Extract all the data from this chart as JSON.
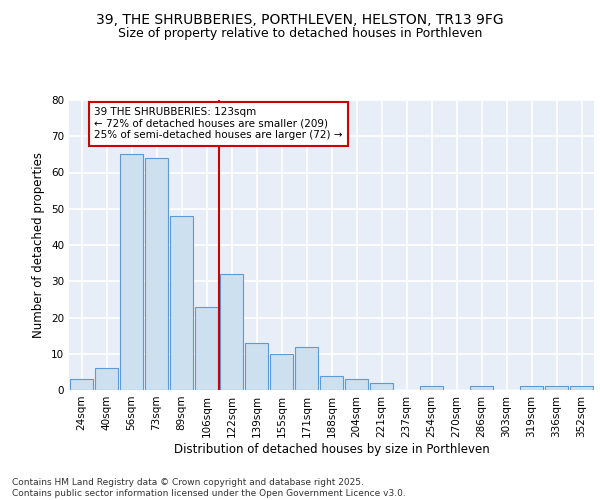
{
  "title": "39, THE SHRUBBERIES, PORTHLEVEN, HELSTON, TR13 9FG",
  "subtitle": "Size of property relative to detached houses in Porthleven",
  "xlabel": "Distribution of detached houses by size in Porthleven",
  "ylabel": "Number of detached properties",
  "categories": [
    "24sqm",
    "40sqm",
    "56sqm",
    "73sqm",
    "89sqm",
    "106sqm",
    "122sqm",
    "139sqm",
    "155sqm",
    "171sqm",
    "188sqm",
    "204sqm",
    "221sqm",
    "237sqm",
    "254sqm",
    "270sqm",
    "286sqm",
    "303sqm",
    "319sqm",
    "336sqm",
    "352sqm"
  ],
  "values": [
    3,
    6,
    65,
    64,
    48,
    23,
    32,
    13,
    10,
    12,
    4,
    3,
    2,
    0,
    1,
    0,
    1,
    0,
    1,
    1,
    1
  ],
  "bar_color": "#cce0f0",
  "bar_edge_color": "#5b9bd5",
  "vline_x": 6,
  "vline_color": "#cc0000",
  "annotation_text": "39 THE SHRUBBERIES: 123sqm\n← 72% of detached houses are smaller (209)\n25% of semi-detached houses are larger (72) →",
  "annotation_box_color": "#ffffff",
  "annotation_box_edge": "#cc0000",
  "ylim": [
    0,
    80
  ],
  "yticks": [
    0,
    10,
    20,
    30,
    40,
    50,
    60,
    70,
    80
  ],
  "background_color": "#e8eef8",
  "grid_color": "#ffffff",
  "footer": "Contains HM Land Registry data © Crown copyright and database right 2025.\nContains public sector information licensed under the Open Government Licence v3.0.",
  "title_fontsize": 10,
  "subtitle_fontsize": 9,
  "xlabel_fontsize": 8.5,
  "ylabel_fontsize": 8.5,
  "tick_fontsize": 7.5,
  "annotation_fontsize": 7.5,
  "footer_fontsize": 6.5
}
